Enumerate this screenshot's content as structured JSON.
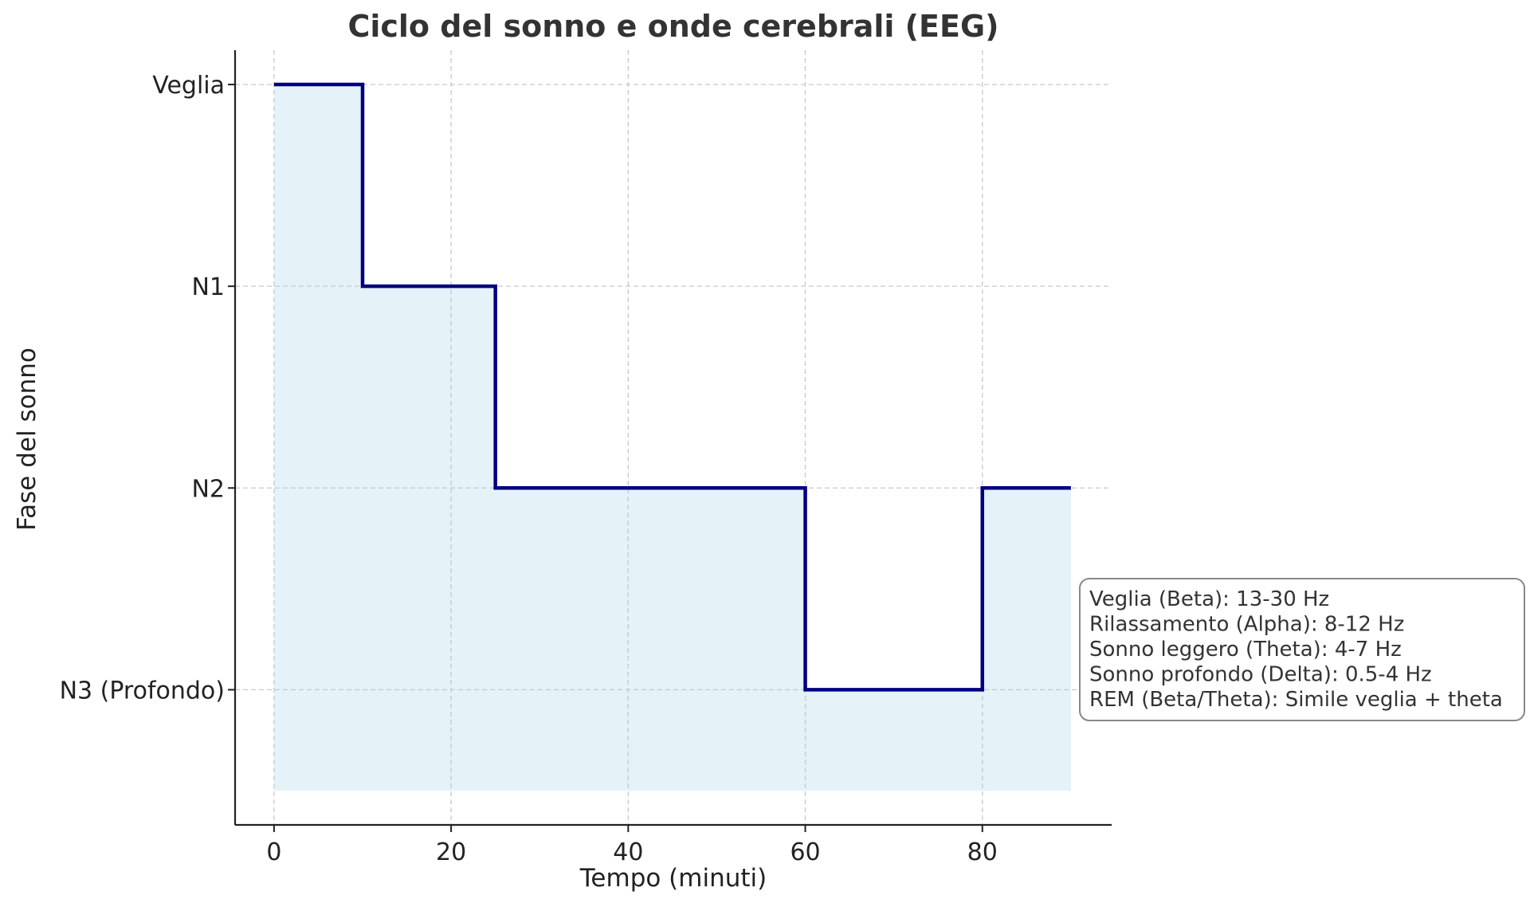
{
  "chart_data": {
    "type": "line",
    "step": "post",
    "title": "Ciclo del sonno e onde cerebrali (EEG)",
    "xlabel": "Tempo (minuti)",
    "ylabel": "Fase del sonno",
    "xlim": [
      -4.4,
      94.6
    ],
    "ylim": [
      -0.67,
      3.17
    ],
    "xticks": [
      0,
      20,
      40,
      60,
      80
    ],
    "yticks": [
      {
        "value": 3,
        "label": "Veglia"
      },
      {
        "value": 2,
        "label": "N1"
      },
      {
        "value": 1,
        "label": "N2"
      },
      {
        "value": 0,
        "label": "N3 (Profondo)"
      }
    ],
    "grid": true,
    "series": [
      {
        "x": [
          0,
          10,
          25,
          60,
          80,
          90
        ],
        "y": [
          3,
          2,
          1,
          0,
          1,
          1
        ],
        "color": "#000080",
        "fill_color": "#add8e6",
        "fill_baseline": -0.5
      }
    ],
    "annotation": {
      "lines": [
        "Veglia (Beta): 13-30 Hz",
        "Rilassamento (Alpha): 8-12 Hz",
        "Sonno leggero (Theta): 4-7 Hz",
        "Sonno profondo (Delta): 0.5-4 Hz",
        "REM (Beta/Theta): Simile veglia + theta"
      ],
      "placement": "right"
    }
  }
}
